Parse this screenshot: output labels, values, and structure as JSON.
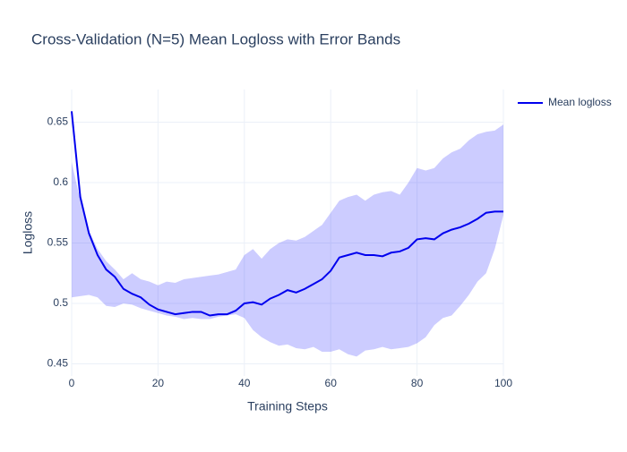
{
  "chart_data": {
    "type": "line",
    "title": "Cross-Validation (N=5) Mean Logloss with Error Bands",
    "x_label": "Training Steps",
    "y_label": "Logloss",
    "x": [
      0,
      2,
      4,
      6,
      8,
      10,
      12,
      14,
      16,
      18,
      20,
      22,
      24,
      26,
      28,
      30,
      32,
      34,
      36,
      38,
      40,
      42,
      44,
      46,
      48,
      50,
      52,
      54,
      56,
      58,
      60,
      62,
      64,
      66,
      68,
      70,
      72,
      74,
      76,
      78,
      80,
      82,
      84,
      86,
      88,
      90,
      92,
      94,
      96,
      98,
      100
    ],
    "series": [
      {
        "name": "Mean logloss",
        "color": "#0000ee",
        "values": [
          0.659,
          0.588,
          0.558,
          0.54,
          0.528,
          0.522,
          0.512,
          0.508,
          0.505,
          0.499,
          0.495,
          0.493,
          0.491,
          0.492,
          0.493,
          0.493,
          0.49,
          0.491,
          0.491,
          0.494,
          0.5,
          0.501,
          0.499,
          0.504,
          0.507,
          0.511,
          0.509,
          0.512,
          0.516,
          0.52,
          0.527,
          0.538,
          0.54,
          0.542,
          0.54,
          0.54,
          0.539,
          0.542,
          0.543,
          0.546,
          0.553,
          0.554,
          0.553,
          0.558,
          0.561,
          0.563,
          0.566,
          0.57,
          0.575,
          0.576,
          0.576
        ]
      }
    ],
    "band": {
      "color": "rgba(0,0,255,0.2)",
      "upper": [
        0.617,
        0.585,
        0.56,
        0.545,
        0.535,
        0.528,
        0.52,
        0.525,
        0.52,
        0.518,
        0.515,
        0.518,
        0.517,
        0.52,
        0.521,
        0.522,
        0.523,
        0.524,
        0.526,
        0.528,
        0.54,
        0.545,
        0.537,
        0.545,
        0.55,
        0.553,
        0.552,
        0.555,
        0.56,
        0.565,
        0.575,
        0.585,
        0.588,
        0.59,
        0.585,
        0.59,
        0.592,
        0.593,
        0.59,
        0.6,
        0.612,
        0.61,
        0.612,
        0.62,
        0.625,
        0.628,
        0.635,
        0.64,
        0.642,
        0.643,
        0.648
      ],
      "lower": [
        0.505,
        0.506,
        0.507,
        0.505,
        0.498,
        0.497,
        0.5,
        0.499,
        0.496,
        0.494,
        0.492,
        0.49,
        0.489,
        0.487,
        0.488,
        0.487,
        0.487,
        0.489,
        0.49,
        0.491,
        0.488,
        0.478,
        0.472,
        0.468,
        0.465,
        0.466,
        0.463,
        0.462,
        0.464,
        0.46,
        0.46,
        0.462,
        0.458,
        0.456,
        0.461,
        0.462,
        0.464,
        0.462,
        0.463,
        0.464,
        0.467,
        0.472,
        0.482,
        0.488,
        0.49,
        0.498,
        0.507,
        0.518,
        0.525,
        0.545,
        0.573
      ]
    },
    "xlim": [
      0,
      100
    ],
    "xticks": [
      0,
      20,
      40,
      60,
      80,
      100
    ],
    "ylim": [
      0.44,
      0.677
    ],
    "yticks": [
      0.45,
      0.5,
      0.55,
      0.6,
      0.65
    ],
    "grid": true,
    "legend_position": "top-right"
  }
}
